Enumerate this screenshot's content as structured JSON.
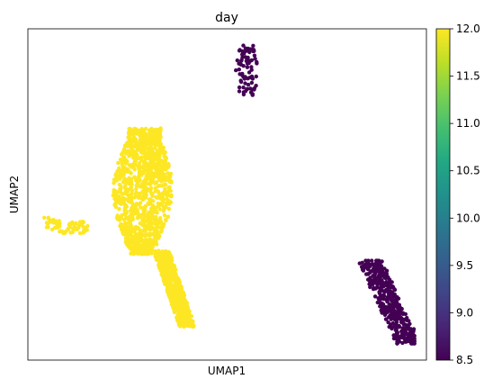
{
  "chart_data": {
    "type": "scatter",
    "title": "day",
    "xlabel": "UMAP1",
    "ylabel": "UMAP2",
    "x_ticks": false,
    "y_ticks": false,
    "grid": false,
    "colormap": "viridis",
    "colorbar": {
      "min": 8.5,
      "max": 12.0,
      "ticks": [
        "8.5",
        "9.0",
        "9.5",
        "10.0",
        "10.5",
        "11.0",
        "11.5",
        "12.0"
      ]
    },
    "colors": {
      "day_8_5": "#440154",
      "day_12": "#fde725"
    },
    "clusters": [
      {
        "day": 8.5,
        "approx_points": 80,
        "x_range": [
          0.52,
          0.58
        ],
        "y_range": [
          0.8,
          0.95
        ]
      },
      {
        "day": 12.0,
        "approx_points": 1100,
        "x_range": [
          0.21,
          0.36
        ],
        "y_range": [
          0.32,
          0.7
        ]
      },
      {
        "day": 12.0,
        "approx_points": 550,
        "x_range": [
          0.32,
          0.42
        ],
        "y_range": [
          0.1,
          0.33
        ]
      },
      {
        "day": 12.0,
        "approx_points": 60,
        "x_range": [
          0.04,
          0.15
        ],
        "y_range": [
          0.37,
          0.43
        ]
      },
      {
        "day": 8.5,
        "approx_points": 420,
        "x_range": [
          0.81,
          0.97
        ],
        "y_range": [
          0.05,
          0.3
        ]
      }
    ]
  }
}
